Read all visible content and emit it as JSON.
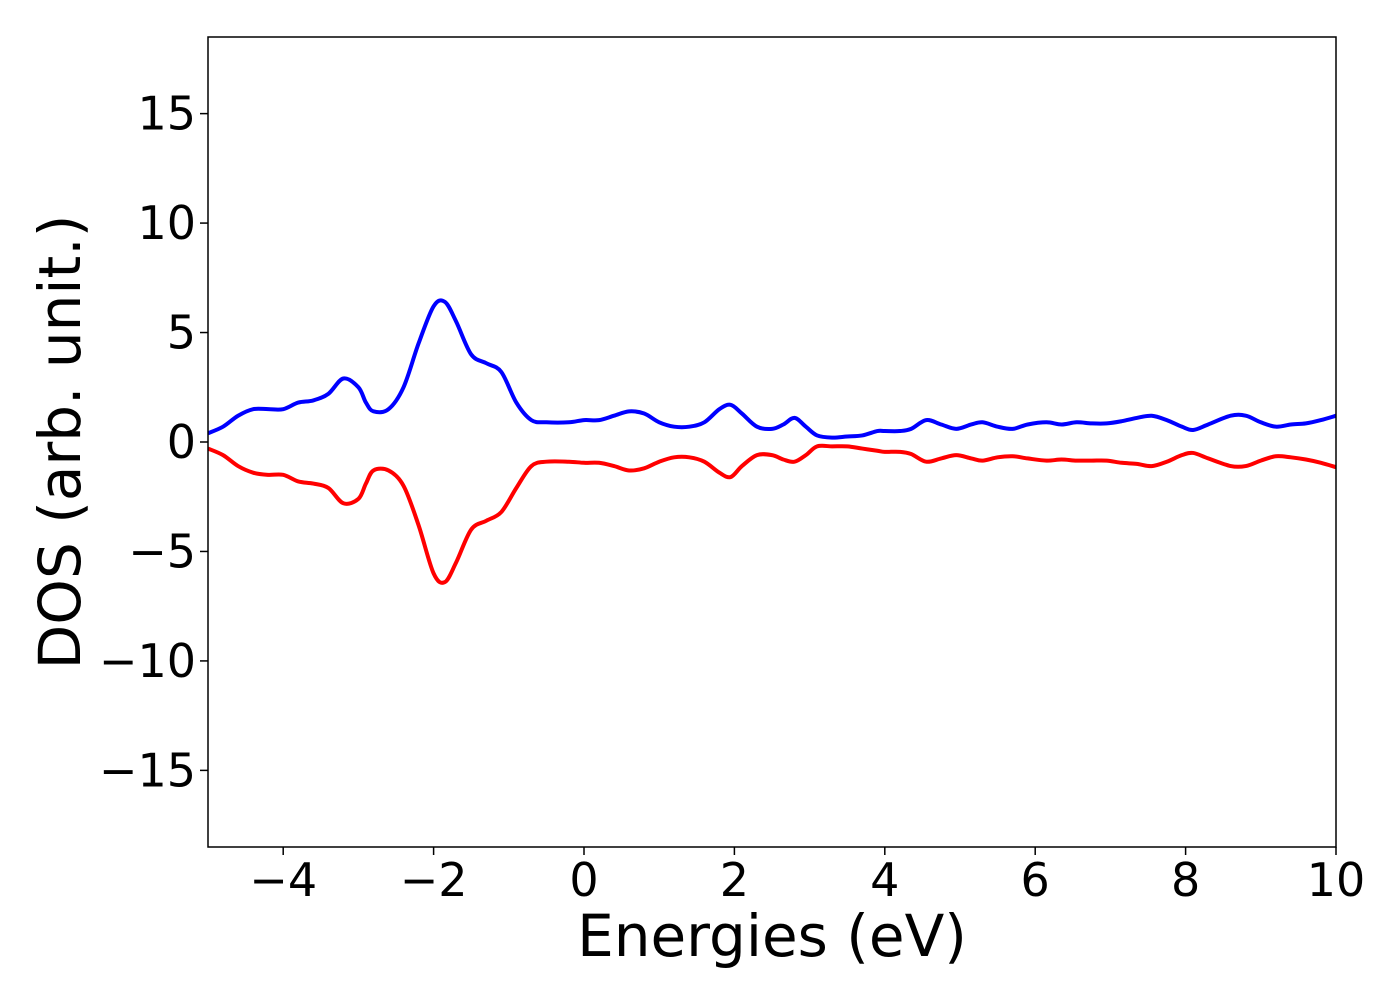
{
  "chart_data": {
    "type": "line",
    "xlabel": "Energies (eV)",
    "ylabel": "DOS (arb. unit.)",
    "xlim": [
      -5,
      10
    ],
    "ylim": [
      -18.5,
      18.5
    ],
    "xticks": [
      -4,
      -2,
      0,
      2,
      4,
      6,
      8,
      10
    ],
    "yticks": [
      -15,
      -10,
      -5,
      0,
      5,
      10,
      15
    ],
    "xtick_labels": [
      "−4",
      "−2",
      "0",
      "2",
      "4",
      "6",
      "8",
      "10"
    ],
    "ytick_labels": [
      "−15",
      "−10",
      "−5",
      "0",
      "5",
      "10",
      "15"
    ],
    "grid": false,
    "series": [
      {
        "color": "#0000ff",
        "x": [
          -5.0,
          -4.8,
          -4.6,
          -4.4,
          -4.2,
          -4.0,
          -3.8,
          -3.6,
          -3.4,
          -3.2,
          -3.0,
          -2.9,
          -2.8,
          -2.6,
          -2.4,
          -2.2,
          -2.0,
          -1.85,
          -1.7,
          -1.5,
          -1.3,
          -1.1,
          -0.9,
          -0.7,
          -0.5,
          -0.2,
          0.0,
          0.2,
          0.4,
          0.6,
          0.8,
          1.0,
          1.2,
          1.4,
          1.6,
          1.8,
          1.95,
          2.1,
          2.3,
          2.5,
          2.65,
          2.8,
          2.95,
          3.1,
          3.3,
          3.5,
          3.7,
          3.9,
          4.0,
          4.2,
          4.35,
          4.55,
          4.75,
          4.95,
          5.15,
          5.3,
          5.5,
          5.7,
          5.9,
          6.15,
          6.35,
          6.55,
          6.75,
          6.95,
          7.15,
          7.35,
          7.55,
          7.75,
          7.95,
          8.1,
          8.3,
          8.6,
          8.8,
          9.0,
          9.2,
          9.4,
          9.6,
          9.8,
          10.0
        ],
        "y": [
          0.4,
          0.7,
          1.2,
          1.5,
          1.5,
          1.5,
          1.8,
          1.9,
          2.2,
          2.9,
          2.5,
          1.8,
          1.4,
          1.5,
          2.5,
          4.5,
          6.2,
          6.4,
          5.5,
          4.0,
          3.6,
          3.2,
          1.8,
          1.0,
          0.9,
          0.9,
          1.0,
          1.0,
          1.2,
          1.4,
          1.3,
          0.9,
          0.7,
          0.7,
          0.9,
          1.5,
          1.7,
          1.3,
          0.7,
          0.6,
          0.8,
          1.1,
          0.7,
          0.3,
          0.2,
          0.25,
          0.3,
          0.5,
          0.5,
          0.5,
          0.6,
          1.0,
          0.8,
          0.6,
          0.8,
          0.9,
          0.7,
          0.6,
          0.8,
          0.9,
          0.8,
          0.9,
          0.85,
          0.85,
          0.95,
          1.1,
          1.2,
          1.0,
          0.7,
          0.55,
          0.8,
          1.2,
          1.2,
          0.9,
          0.7,
          0.8,
          0.85,
          1.0,
          1.2
        ]
      },
      {
        "color": "#ff0000",
        "x": [
          -5.0,
          -4.8,
          -4.6,
          -4.4,
          -4.2,
          -4.0,
          -3.8,
          -3.6,
          -3.4,
          -3.2,
          -3.0,
          -2.9,
          -2.8,
          -2.6,
          -2.4,
          -2.2,
          -2.0,
          -1.85,
          -1.7,
          -1.5,
          -1.3,
          -1.1,
          -0.9,
          -0.7,
          -0.5,
          -0.2,
          0.0,
          0.2,
          0.4,
          0.6,
          0.8,
          1.0,
          1.2,
          1.4,
          1.6,
          1.8,
          1.95,
          2.1,
          2.3,
          2.5,
          2.65,
          2.8,
          2.95,
          3.1,
          3.3,
          3.5,
          3.7,
          3.9,
          4.0,
          4.2,
          4.35,
          4.55,
          4.75,
          4.95,
          5.15,
          5.3,
          5.5,
          5.7,
          5.9,
          6.15,
          6.35,
          6.55,
          6.75,
          6.95,
          7.15,
          7.35,
          7.55,
          7.75,
          7.95,
          8.1,
          8.3,
          8.6,
          8.8,
          9.0,
          9.2,
          9.4,
          9.6,
          9.8,
          10.0
        ],
        "y": [
          -0.3,
          -0.6,
          -1.1,
          -1.4,
          -1.5,
          -1.5,
          -1.8,
          -1.9,
          -2.1,
          -2.8,
          -2.6,
          -1.9,
          -1.3,
          -1.3,
          -2.0,
          -3.8,
          -6.0,
          -6.4,
          -5.5,
          -4.0,
          -3.6,
          -3.2,
          -2.1,
          -1.1,
          -0.9,
          -0.9,
          -0.95,
          -0.95,
          -1.1,
          -1.3,
          -1.2,
          -0.9,
          -0.7,
          -0.7,
          -0.9,
          -1.4,
          -1.6,
          -1.1,
          -0.6,
          -0.6,
          -0.8,
          -0.9,
          -0.6,
          -0.2,
          -0.2,
          -0.2,
          -0.3,
          -0.4,
          -0.45,
          -0.45,
          -0.55,
          -0.9,
          -0.75,
          -0.6,
          -0.75,
          -0.85,
          -0.7,
          -0.65,
          -0.75,
          -0.85,
          -0.8,
          -0.85,
          -0.85,
          -0.85,
          -0.95,
          -1.0,
          -1.1,
          -0.9,
          -0.6,
          -0.5,
          -0.75,
          -1.1,
          -1.1,
          -0.85,
          -0.65,
          -0.7,
          -0.8,
          -0.95,
          -1.15
        ]
      }
    ]
  }
}
